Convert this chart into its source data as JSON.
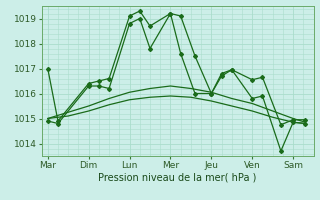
{
  "xlabel": "Pression niveau de la mer( hPa )",
  "background_color": "#cceee8",
  "grid_color": "#aaddcc",
  "line_color": "#1a6b1a",
  "days": [
    "Mar",
    "Dim",
    "Lun",
    "Mer",
    "Jeu",
    "Ven",
    "Sam"
  ],
  "day_positions": [
    0,
    1,
    2,
    3,
    4,
    5,
    6
  ],
  "ylim": [
    1013.5,
    1019.5
  ],
  "yticks": [
    1014,
    1015,
    1016,
    1017,
    1018,
    1019
  ],
  "line1_x": [
    0.0,
    0.25,
    1.0,
    1.25,
    1.5,
    2.0,
    2.25,
    2.5,
    3.0,
    3.25,
    3.6,
    4.0,
    4.25,
    4.5,
    5.0,
    5.25,
    5.7,
    6.0,
    6.3
  ],
  "line1_y": [
    1017.0,
    1014.9,
    1016.4,
    1016.5,
    1016.6,
    1019.1,
    1019.3,
    1018.7,
    1019.2,
    1019.1,
    1017.5,
    1016.0,
    1016.8,
    1016.95,
    1016.55,
    1016.65,
    1014.75,
    1014.95,
    1014.95
  ],
  "line2_x": [
    0.0,
    0.25,
    1.0,
    1.25,
    1.5,
    2.0,
    2.25,
    2.5,
    3.0,
    3.25,
    3.6,
    4.0,
    4.25,
    4.5,
    5.0,
    5.25,
    5.7,
    6.0,
    6.3
  ],
  "line2_y": [
    1014.9,
    1014.8,
    1016.3,
    1016.3,
    1016.2,
    1018.8,
    1019.0,
    1017.8,
    1019.2,
    1017.6,
    1016.0,
    1016.0,
    1016.7,
    1016.95,
    1015.8,
    1015.9,
    1013.7,
    1014.85,
    1014.8
  ],
  "smooth1_x": [
    0.0,
    0.5,
    1.0,
    1.5,
    2.0,
    2.5,
    3.0,
    3.5,
    4.0,
    4.5,
    5.0,
    5.5,
    6.0,
    6.3
  ],
  "smooth1_y": [
    1015.0,
    1015.1,
    1015.3,
    1015.55,
    1015.75,
    1015.85,
    1015.9,
    1015.85,
    1015.7,
    1015.5,
    1015.3,
    1015.05,
    1014.85,
    1014.8
  ],
  "smooth2_x": [
    0.0,
    0.5,
    1.0,
    1.5,
    2.0,
    2.5,
    3.0,
    3.5,
    4.0,
    4.5,
    5.0,
    5.5,
    6.0,
    6.3
  ],
  "smooth2_y": [
    1015.0,
    1015.25,
    1015.5,
    1015.8,
    1016.05,
    1016.2,
    1016.3,
    1016.2,
    1016.05,
    1015.8,
    1015.6,
    1015.3,
    1015.0,
    1014.85
  ]
}
